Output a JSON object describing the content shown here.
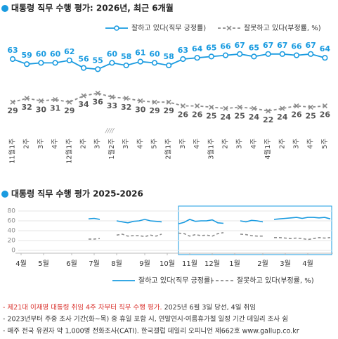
{
  "chart_data": [
    {
      "type": "line",
      "title": "대통령 직무 수행 평가: 2026년, 최근 6개월",
      "categories": [
        "11월1주",
        "2주",
        "3주",
        "4주",
        "12월1주",
        "2주",
        "3주",
        "1월2주",
        "3주",
        "4주",
        "5주",
        "2월1주",
        "3주",
        "4주",
        "3월1주",
        "2주",
        "3주",
        "4주",
        "4월1주",
        "2주",
        "3주",
        "4주",
        "5주"
      ],
      "series": [
        {
          "name": "잘하고 있다(직무 긍정률)",
          "color": "#1a9be0",
          "line_style": "solid",
          "values": [
            63,
            59,
            60,
            60,
            62,
            56,
            55,
            60,
            58,
            61,
            60,
            58,
            63,
            64,
            65,
            66,
            67,
            65,
            67,
            67,
            66,
            67,
            64
          ]
        },
        {
          "name": "잘못하고 있다(부정률, %)",
          "color": "#8c8c8c",
          "line_style": "dashed",
          "values": [
            29,
            32,
            30,
            31,
            29,
            34,
            36,
            33,
            32,
            30,
            29,
            29,
            26,
            26,
            25,
            24,
            25,
            24,
            22,
            24,
            26,
            25,
            26
          ]
        }
      ],
      "ylim": [
        20,
        70
      ],
      "data_labels": true
    },
    {
      "type": "line",
      "title": "대통령 직무 수행 평가 2025-2026",
      "categories": [
        "4월",
        null,
        null,
        null,
        "5월",
        null,
        null,
        null,
        null,
        "6월",
        null,
        null,
        null,
        "7월",
        null,
        null,
        null,
        "8월",
        null,
        null,
        null,
        null,
        "9월",
        null,
        null,
        null,
        "10월",
        null,
        null,
        null,
        "11월",
        null,
        null,
        null,
        "12월",
        null,
        null,
        null,
        "1월",
        null,
        null,
        null,
        null,
        "2월",
        null,
        null,
        null,
        "3월",
        null,
        null,
        null,
        "4월",
        null,
        null,
        null,
        null
      ],
      "series": [
        {
          "name": "잘하고 있다(직무 긍정률)",
          "color": "#1a9be0",
          "line_style": "solid",
          "values": [
            null,
            null,
            null,
            null,
            null,
            null,
            null,
            null,
            null,
            null,
            null,
            null,
            64,
            65,
            63,
            null,
            null,
            60,
            58,
            56,
            59,
            60,
            63,
            60,
            59,
            58,
            null,
            null,
            54,
            57,
            63,
            59,
            60,
            60,
            62,
            56,
            55,
            null,
            null,
            60,
            58,
            61,
            60,
            58,
            null,
            63,
            64,
            65,
            66,
            67,
            65,
            67,
            67,
            66,
            67,
            64
          ]
        },
        {
          "name": "잘못하고 있다(부정률, %)",
          "color": "#8c8c8c",
          "line_style": "dashed",
          "values": [
            null,
            null,
            null,
            null,
            null,
            null,
            null,
            null,
            null,
            null,
            null,
            null,
            23,
            23,
            24,
            null,
            null,
            31,
            33,
            29,
            30,
            30,
            28,
            31,
            29,
            33,
            null,
            null,
            35,
            34,
            29,
            32,
            30,
            31,
            29,
            34,
            36,
            null,
            null,
            33,
            32,
            30,
            29,
            29,
            null,
            26,
            26,
            25,
            24,
            25,
            24,
            22,
            24,
            26,
            25,
            26
          ]
        }
      ],
      "ylim": [
        0,
        80
      ],
      "yticks": [
        0,
        20,
        40,
        60,
        80
      ],
      "grid": true,
      "data_labels": false
    }
  ],
  "footnotes": [
    [
      "- 제21대 이재명 대통령 취임 4주 차부터 직무 수행 평가.",
      " 2025년 6월 3일 당선, 4일 취임"
    ],
    [
      "- 2023년부터 주중 조사 기간(화~목) 중 휴일 포함 시, 연말연시·여름휴가철 일정 기간 데일리 조사 쉼"
    ],
    [
      "- 매주 전국 유권자 약 1,000명 전화조사(CATI). 한국갤럽 데일리 오피니언 제662호 www.gallup.co.kr"
    ]
  ]
}
